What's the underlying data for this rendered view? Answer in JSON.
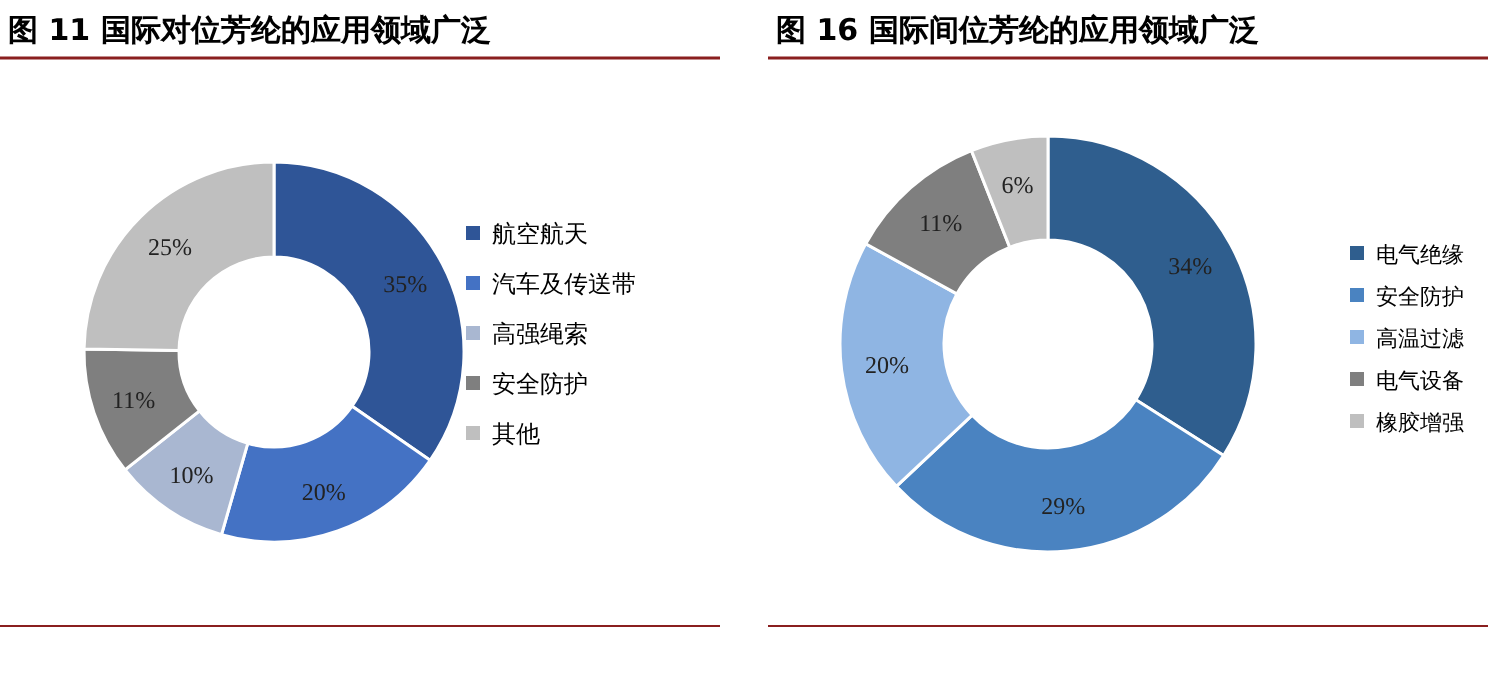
{
  "chart_data": [
    {
      "type": "donut",
      "title": "图 11  国际对位芳纶的应用领域广泛",
      "categories": [
        "航空航天",
        "汽车及传送带",
        "高强绳索",
        "安全防护",
        "其他"
      ],
      "values": [
        35,
        20,
        10,
        11,
        25
      ],
      "value_labels": [
        "35%",
        "20%",
        "10%",
        "11%",
        "25%"
      ],
      "colors": [
        "#2f5597",
        "#4472c4",
        "#a9b7d1",
        "#7f7f7f",
        "#bfbfbf"
      ],
      "legend": "right"
    },
    {
      "type": "donut",
      "title": "图 16  国际间位芳纶的应用领域广泛",
      "categories": [
        "电气绝缘",
        "安全防护",
        "高温过滤",
        "电气设备",
        "橡胶增强"
      ],
      "values": [
        34,
        29,
        20,
        11,
        6
      ],
      "value_labels": [
        "34%",
        "29%",
        "20%",
        "11%",
        "6%"
      ],
      "colors": [
        "#2f5e8e",
        "#4a83c1",
        "#8fb5e3",
        "#7f7f7f",
        "#bfbfbf"
      ],
      "legend": "right"
    }
  ]
}
